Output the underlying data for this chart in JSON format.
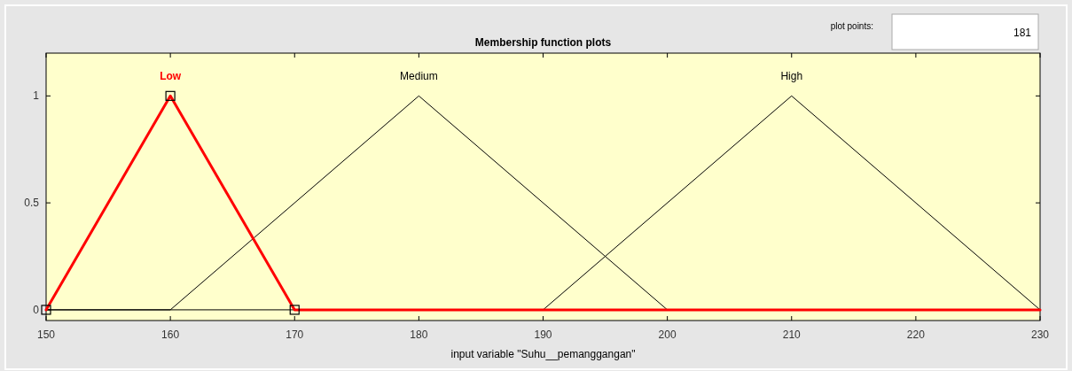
{
  "chart_data": {
    "type": "line",
    "title": "Membership function plots",
    "xlabel": "input variable \"Suhu__pemanggangan\"",
    "xlim": [
      150,
      230
    ],
    "xticks": [
      150,
      160,
      170,
      180,
      190,
      200,
      210,
      220,
      230
    ],
    "ylim": [
      -0.05,
      1.2
    ],
    "yticks": [
      0,
      0.5,
      1
    ],
    "series": [
      {
        "name": "Low",
        "color": "#ff0000",
        "x": [
          150,
          160,
          170,
          230
        ],
        "values": [
          0,
          1,
          0,
          0
        ],
        "marker": "square"
      },
      {
        "name": "Medium",
        "color": "#000000",
        "x": [
          150,
          160,
          180,
          200,
          230
        ],
        "values": [
          0,
          0,
          1,
          0,
          0
        ],
        "marker": "none"
      },
      {
        "name": "High",
        "color": "#000000",
        "x": [
          150,
          190,
          210,
          230
        ],
        "values": [
          0,
          0,
          1,
          0
        ],
        "marker": "none"
      }
    ],
    "annotations": [
      "plot points:",
      "181"
    ],
    "legend": "top",
    "grid": false
  }
}
